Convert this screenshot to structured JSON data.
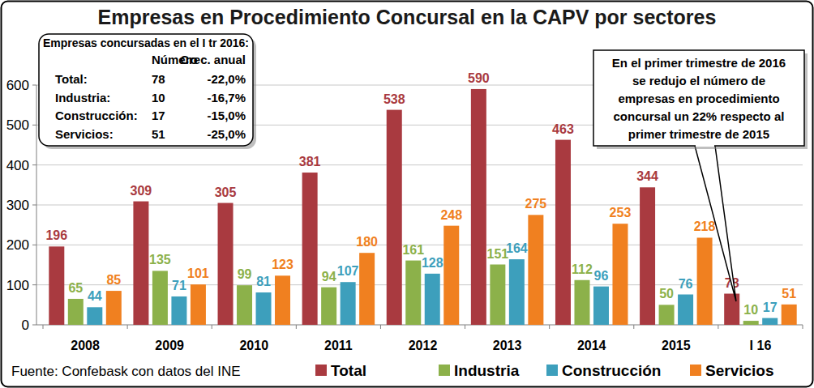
{
  "chart_data": {
    "type": "bar",
    "title": "Empresas en Procedimiento Concursal en la CAPV por sectores",
    "categories": [
      "2008",
      "2009",
      "2010",
      "2011",
      "2012",
      "2013",
      "2014",
      "2015",
      "I 16"
    ],
    "series": [
      {
        "name": "Total",
        "color": "#a93a40",
        "values": [
          196,
          309,
          305,
          381,
          538,
          590,
          463,
          344,
          78
        ]
      },
      {
        "name": "Industria",
        "color": "#8cb14a",
        "values": [
          65,
          135,
          99,
          94,
          161,
          151,
          112,
          50,
          10
        ]
      },
      {
        "name": "Construcción",
        "color": "#3d9fbc",
        "values": [
          44,
          71,
          81,
          107,
          128,
          164,
          96,
          76,
          17
        ]
      },
      {
        "name": "Servicios",
        "color": "#f08020",
        "values": [
          85,
          101,
          123,
          180,
          248,
          275,
          253,
          218,
          51
        ]
      }
    ],
    "ylim": [
      0,
      600
    ],
    "yticks": [
      0,
      100,
      200,
      300,
      400,
      500,
      600
    ],
    "grid": true,
    "data_labels": true,
    "legend": "bottom",
    "annotations": {
      "source": "Fuente: Confebask con datos del INE",
      "summary_table": {
        "title": "Empresas concursadas en el I tr 2016:",
        "headers": [
          "Número",
          "Crec. anual"
        ],
        "rows": [
          [
            "Total:",
            "78",
            "-22,0%"
          ],
          [
            "Industria:",
            "10",
            "-16,7%"
          ],
          [
            "Construcción:",
            "17",
            "-15,0%"
          ],
          [
            "Servicios:",
            "51",
            "-25,0%"
          ]
        ]
      },
      "callout": [
        "En el primer trimestre de 2016",
        "se redujo el número de",
        "empresas en procedimiento",
        "concursal un 22% respecto al",
        "primer trimestre de  2015"
      ]
    }
  }
}
